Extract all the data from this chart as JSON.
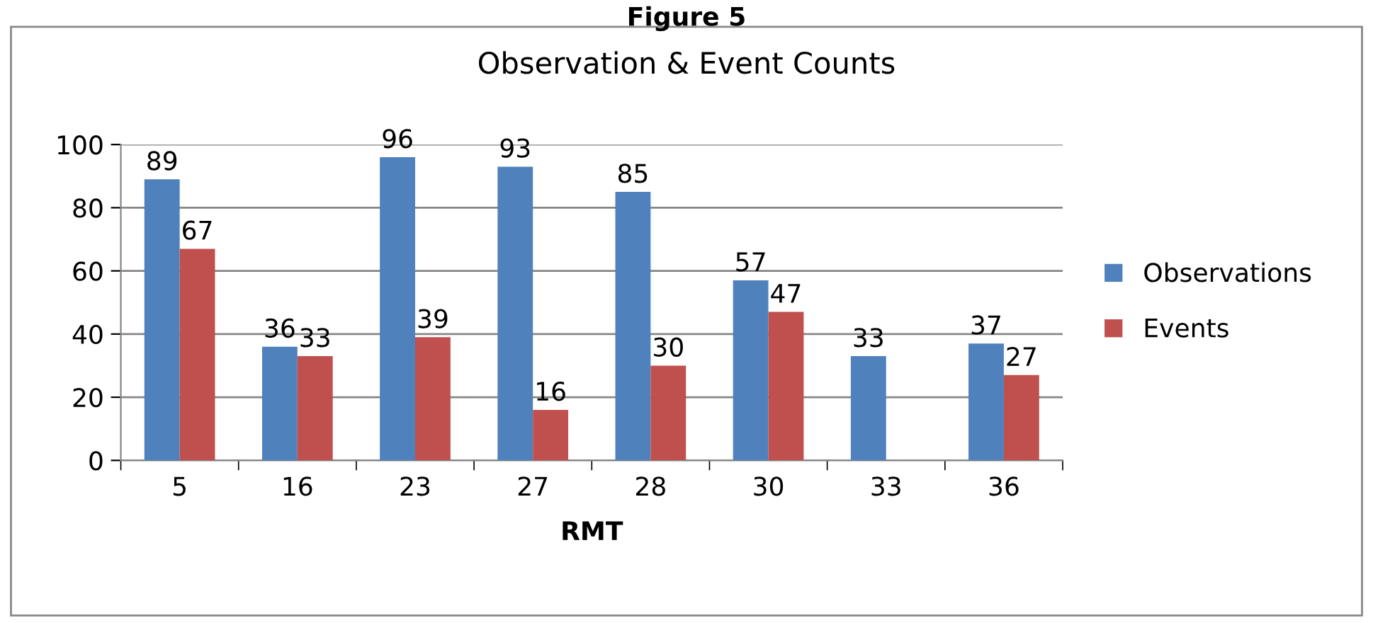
{
  "chart_data": {
    "type": "bar",
    "title": "Observation & Event Counts",
    "xlabel": "RMT",
    "annotations": [
      "Figure 5"
    ],
    "categories": [
      "5",
      "16",
      "23",
      "27",
      "28",
      "30",
      "33",
      "36"
    ],
    "series": [
      {
        "name": "Observations",
        "color": "#4f81bd",
        "values": [
          89,
          36,
          96,
          93,
          85,
          57,
          33,
          37
        ]
      },
      {
        "name": "Events",
        "color": "#c0504d",
        "values": [
          67,
          33,
          39,
          16,
          30,
          47,
          null,
          27
        ]
      }
    ],
    "ylim": [
      0,
      100
    ],
    "yticks": [
      0,
      20,
      40,
      60,
      80,
      100
    ],
    "grid": "y",
    "legend": "right",
    "data_labels": true
  }
}
